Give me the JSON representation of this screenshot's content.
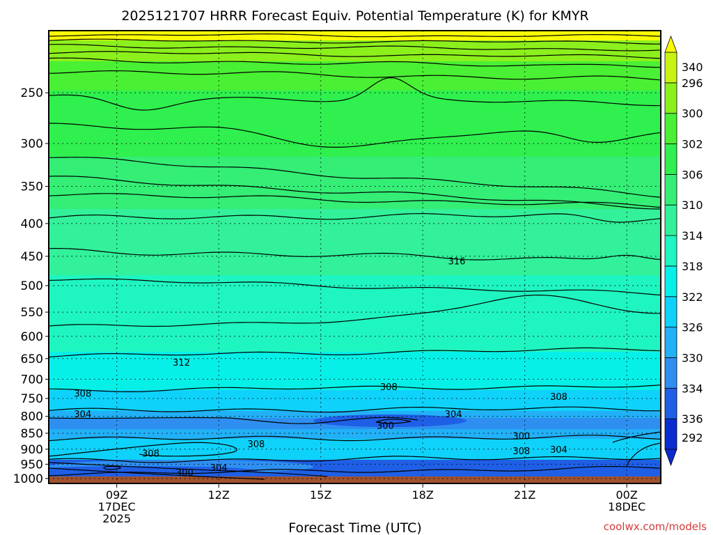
{
  "chart_data": {
    "type": "heatmap",
    "title": "2025121707 HRRR Forecast Equiv. Potential Temperature (K) for KMYR",
    "xlabel": "Forecast Time (UTC)",
    "ylabel": "",
    "x_range_hours": [
      7,
      25
    ],
    "x_ticks": [
      {
        "hour": 9,
        "lines": [
          "09Z",
          "17DEC",
          "2025"
        ]
      },
      {
        "hour": 12,
        "lines": [
          "12Z"
        ]
      },
      {
        "hour": 15,
        "lines": [
          "15Z"
        ]
      },
      {
        "hour": 18,
        "lines": [
          "18Z"
        ]
      },
      {
        "hour": 21,
        "lines": [
          "21Z"
        ]
      },
      {
        "hour": 24,
        "lines": [
          "00Z",
          "18DEC"
        ]
      }
    ],
    "y_scale": "log",
    "y_range": [
      1018,
      200
    ],
    "y_ticks": [
      "250",
      "300",
      "350",
      "400",
      "450",
      "500",
      "550",
      "600",
      "650",
      "700",
      "750",
      "800",
      "850",
      "900",
      "950",
      "1000"
    ],
    "y_values": [
      250,
      300,
      350,
      400,
      450,
      500,
      550,
      600,
      650,
      700,
      750,
      800,
      850,
      900,
      950,
      1000
    ],
    "colorbar": {
      "levels": [
        292,
        296,
        300,
        302,
        306,
        310,
        314,
        318,
        322,
        326,
        330,
        334,
        336,
        340
      ],
      "labels": [
        "292",
        "296",
        "300",
        "302",
        "306",
        "310",
        "314",
        "318",
        "322",
        "326",
        "330",
        "334",
        "336",
        "340"
      ],
      "colors": [
        "#0a2ccf",
        "#1f5fe6",
        "#2e8ff0",
        "#22b0f7",
        "#0fd2fa",
        "#07f0e8",
        "#1ff5c0",
        "#32f19a",
        "#34ee75",
        "#2ff04e",
        "#4af033",
        "#8cf01c",
        "#c8f312",
        "#f8fb06"
      ]
    },
    "contour_labels": [
      {
        "text": "316",
        "hour": 19.0,
        "p": 460
      },
      {
        "text": "312",
        "hour": 10.9,
        "p": 662
      },
      {
        "text": "308",
        "hour": 8.0,
        "p": 740
      },
      {
        "text": "308",
        "hour": 17.0,
        "p": 722
      },
      {
        "text": "308",
        "hour": 22.0,
        "p": 748
      },
      {
        "text": "304",
        "hour": 8.0,
        "p": 797
      },
      {
        "text": "304",
        "hour": 18.9,
        "p": 797
      },
      {
        "text": "300",
        "hour": 16.9,
        "p": 830
      },
      {
        "text": "300",
        "hour": 20.9,
        "p": 862
      },
      {
        "text": "308",
        "hour": 13.1,
        "p": 887
      },
      {
        "text": "308",
        "hour": 20.9,
        "p": 910
      },
      {
        "text": "304",
        "hour": 22.0,
        "p": 905
      },
      {
        "text": "308",
        "hour": 10.0,
        "p": 918
      },
      {
        "text": "304",
        "hour": 12.0,
        "p": 966
      },
      {
        "text": "300",
        "hour": 11.0,
        "p": 983
      }
    ],
    "grid": true,
    "legend": "right"
  },
  "credit": "coolwx.com/models"
}
